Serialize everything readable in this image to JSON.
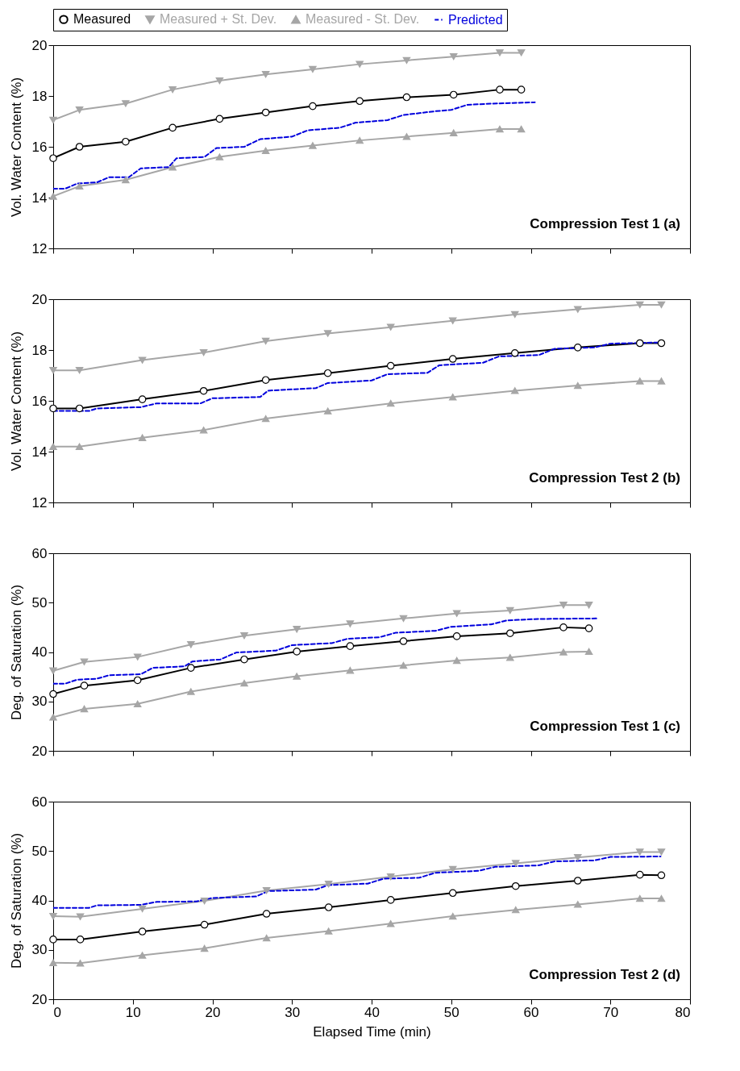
{
  "chart_data": [
    {
      "type": "line",
      "ylabel": "Vol. Water Content (%)",
      "xlim": [
        0,
        80
      ],
      "xticks": [
        0,
        10,
        20,
        30,
        40,
        50,
        60,
        70,
        80
      ],
      "ylim": [
        12,
        20
      ],
      "yticks": [
        12,
        14,
        16,
        18,
        20
      ],
      "tick_labels": "y",
      "legend": "top",
      "annotations": [
        "Compression Test 1   (a)"
      ],
      "series": [
        {
          "name": "Measured",
          "color": "#000000",
          "marker": "circle",
          "line_style": "solid",
          "x": [
            0,
            3.3,
            9.1,
            15,
            20.9,
            26.7,
            32.6,
            38.5,
            44.4,
            50.3,
            56.1,
            58.8
          ],
          "values": [
            15.55,
            16.0,
            16.2,
            16.75,
            17.1,
            17.35,
            17.6,
            17.8,
            17.95,
            18.05,
            18.25,
            18.25
          ]
        },
        {
          "name": "Measured + St. Dev.",
          "color": "#a6a6a6",
          "marker": "triangle-down",
          "line_style": "solid",
          "x": [
            0,
            3.3,
            9.1,
            15,
            20.9,
            26.7,
            32.6,
            38.5,
            44.4,
            50.3,
            56.1,
            58.8
          ],
          "values": [
            17.05,
            17.45,
            17.7,
            18.25,
            18.6,
            18.85,
            19.05,
            19.25,
            19.4,
            19.55,
            19.7,
            19.7
          ]
        },
        {
          "name": "Measured - St. Dev.",
          "color": "#a6a6a6",
          "marker": "triangle",
          "line_style": "solid",
          "x": [
            0,
            3.3,
            9.1,
            15,
            20.9,
            26.7,
            32.6,
            38.5,
            44.4,
            50.3,
            56.1,
            58.8
          ],
          "values": [
            14.05,
            14.45,
            14.7,
            15.2,
            15.6,
            15.85,
            16.05,
            16.25,
            16.4,
            16.55,
            16.7,
            16.7
          ]
        },
        {
          "name": "Predicted",
          "color": "#0000dd",
          "marker": "none",
          "line_style": "dashed",
          "x": [
            0,
            1.5,
            3,
            5.5,
            7,
            9.5,
            11,
            14.5,
            15.5,
            19,
            20.5,
            24,
            26,
            30,
            32,
            36,
            38,
            42,
            44,
            48,
            50,
            52,
            55,
            60.5
          ],
          "values": [
            14.35,
            14.35,
            14.55,
            14.6,
            14.8,
            14.8,
            15.15,
            15.2,
            15.55,
            15.6,
            15.95,
            16.0,
            16.3,
            16.4,
            16.65,
            16.75,
            16.95,
            17.05,
            17.25,
            17.4,
            17.45,
            17.65,
            17.7,
            17.75
          ]
        }
      ]
    },
    {
      "type": "line",
      "ylabel": "Vol. Water Content (%)",
      "xlim": [
        0,
        80
      ],
      "xticks": [
        0,
        10,
        20,
        30,
        40,
        50,
        60,
        70,
        80
      ],
      "ylim": [
        12,
        20
      ],
      "yticks": [
        12,
        14,
        16,
        18,
        20
      ],
      "tick_labels": "y",
      "annotations": [
        "Compression Test 2   (b)"
      ],
      "series": [
        {
          "color": "#000000",
          "marker": "circle",
          "line_style": "solid",
          "x": [
            0,
            3.3,
            11.2,
            18.9,
            26.7,
            34.5,
            42.4,
            50.2,
            58,
            65.9,
            73.7,
            76.4
          ],
          "values": [
            15.7,
            15.7,
            16.06,
            16.39,
            16.82,
            17.09,
            17.38,
            17.65,
            17.88,
            18.1,
            18.27,
            18.27
          ]
        },
        {
          "color": "#a6a6a6",
          "marker": "triangle-down",
          "line_style": "solid",
          "x": [
            0,
            3.3,
            11.2,
            18.9,
            26.7,
            34.5,
            42.4,
            50.2,
            58,
            65.9,
            73.7,
            76.4
          ],
          "values": [
            17.2,
            17.2,
            17.6,
            17.9,
            18.35,
            18.65,
            18.9,
            19.15,
            19.4,
            19.6,
            19.78,
            19.78
          ]
        },
        {
          "color": "#a6a6a6",
          "marker": "triangle",
          "line_style": "solid",
          "x": [
            0,
            3.3,
            11.2,
            18.9,
            26.7,
            34.5,
            42.4,
            50.2,
            58,
            65.9,
            73.7,
            76.4
          ],
          "values": [
            14.2,
            14.2,
            14.55,
            14.85,
            15.3,
            15.6,
            15.9,
            16.15,
            16.4,
            16.6,
            16.78,
            16.78
          ]
        },
        {
          "color": "#0000dd",
          "marker": "none",
          "line_style": "dashed",
          "x": [
            0,
            4.5,
            5.5,
            11,
            13,
            18.5,
            20,
            26,
            27,
            33,
            34.5,
            40,
            42,
            47,
            48.5,
            54,
            56,
            61,
            63,
            68,
            70,
            76.5
          ],
          "values": [
            15.6,
            15.6,
            15.7,
            15.75,
            15.9,
            15.9,
            16.1,
            16.15,
            16.4,
            16.5,
            16.7,
            16.8,
            17.05,
            17.1,
            17.4,
            17.5,
            17.75,
            17.8,
            18.05,
            18.1,
            18.25,
            18.3
          ]
        }
      ]
    },
    {
      "type": "line",
      "ylabel": "Deg. of Saturation (%)",
      "xlim": [
        0,
        80
      ],
      "xticks": [
        0,
        10,
        20,
        30,
        40,
        50,
        60,
        70,
        80
      ],
      "ylim": [
        20,
        60
      ],
      "yticks": [
        20,
        30,
        40,
        50,
        60
      ],
      "tick_labels": "y",
      "annotations": [
        "Compression Test 1   (c)"
      ],
      "series": [
        {
          "color": "#000000",
          "marker": "circle",
          "line_style": "solid",
          "x": [
            0,
            3.9,
            10.6,
            17.3,
            24,
            30.6,
            37.3,
            44,
            50.7,
            57.4,
            64.1,
            67.3
          ],
          "values": [
            31.5,
            33.2,
            34.3,
            36.8,
            38.5,
            40.1,
            41.2,
            42.2,
            43.2,
            43.8,
            45.0,
            44.8
          ]
        },
        {
          "color": "#a6a6a6",
          "marker": "triangle-down",
          "line_style": "solid",
          "x": [
            0,
            3.9,
            10.6,
            17.3,
            24,
            30.6,
            37.3,
            44,
            50.7,
            57.4,
            64.1,
            67.3
          ],
          "values": [
            36.2,
            38.0,
            39.0,
            41.5,
            43.3,
            44.6,
            45.7,
            46.8,
            47.8,
            48.4,
            49.5,
            49.5
          ]
        },
        {
          "color": "#a6a6a6",
          "marker": "triangle",
          "line_style": "solid",
          "x": [
            0,
            3.9,
            10.6,
            17.3,
            24,
            30.6,
            37.3,
            44,
            50.7,
            57.4,
            64.1,
            67.3
          ],
          "values": [
            26.8,
            28.5,
            29.5,
            32.0,
            33.7,
            35.1,
            36.3,
            37.3,
            38.3,
            38.9,
            40.0,
            40.1
          ]
        },
        {
          "color": "#0000dd",
          "marker": "none",
          "line_style": "dashed",
          "x": [
            0,
            1.5,
            3,
            5.5,
            7,
            11,
            12.5,
            16.5,
            17.5,
            21,
            23,
            28,
            30,
            35,
            37,
            41,
            43,
            48,
            50,
            55,
            57,
            61,
            68.5
          ],
          "values": [
            33.6,
            33.6,
            34.4,
            34.6,
            35.3,
            35.5,
            36.8,
            37.1,
            38.1,
            38.5,
            39.9,
            40.3,
            41.4,
            41.8,
            42.7,
            43.0,
            43.9,
            44.3,
            45.1,
            45.6,
            46.4,
            46.7,
            46.8
          ]
        }
      ]
    },
    {
      "type": "line",
      "xlabel": "Elapsed Time (min)",
      "ylabel": "Deg. of Saturation (%)",
      "xlim": [
        0,
        80
      ],
      "xticks": [
        0,
        10,
        20,
        30,
        40,
        50,
        60,
        70,
        80
      ],
      "ylim": [
        20,
        60
      ],
      "yticks": [
        20,
        30,
        40,
        50,
        60
      ],
      "annotations": [
        "Compression Test 2   (d)"
      ],
      "series": [
        {
          "color": "#000000",
          "marker": "circle",
          "line_style": "solid",
          "x": [
            0,
            3.4,
            11.2,
            19,
            26.8,
            34.6,
            42.4,
            50.2,
            58.1,
            65.9,
            73.7,
            76.4
          ],
          "values": [
            32.1,
            32.1,
            33.7,
            35.1,
            37.3,
            38.6,
            40.1,
            41.5,
            42.9,
            44.0,
            45.2,
            45.1
          ]
        },
        {
          "color": "#a6a6a6",
          "marker": "triangle-down",
          "line_style": "solid",
          "x": [
            0,
            3.4,
            11.2,
            19,
            26.8,
            34.6,
            42.4,
            50.2,
            58.1,
            65.9,
            73.7,
            76.4
          ],
          "values": [
            36.8,
            36.7,
            38.3,
            39.9,
            42.0,
            43.3,
            44.8,
            46.3,
            47.5,
            48.7,
            49.8,
            49.8
          ]
        },
        {
          "color": "#a6a6a6",
          "marker": "triangle",
          "line_style": "solid",
          "x": [
            0,
            3.4,
            11.2,
            19,
            26.8,
            34.6,
            42.4,
            50.2,
            58.1,
            65.9,
            73.7,
            76.4
          ],
          "values": [
            27.4,
            27.3,
            28.9,
            30.3,
            32.4,
            33.8,
            35.3,
            36.8,
            38.1,
            39.2,
            40.4,
            40.4
          ]
        },
        {
          "color": "#0000dd",
          "marker": "none",
          "line_style": "dashed",
          "x": [
            0,
            4.5,
            5.5,
            11,
            13,
            18,
            20,
            25.5,
            27,
            33,
            34.5,
            39.5,
            41.5,
            46,
            48,
            53.5,
            55.5,
            61,
            63,
            68,
            70,
            76.3
          ],
          "values": [
            38.5,
            38.5,
            39.0,
            39.1,
            39.7,
            39.8,
            40.5,
            40.8,
            41.9,
            42.2,
            43.1,
            43.4,
            44.4,
            44.6,
            45.6,
            46.0,
            46.8,
            47.1,
            47.9,
            48.1,
            48.8,
            48.9
          ]
        }
      ]
    }
  ]
}
